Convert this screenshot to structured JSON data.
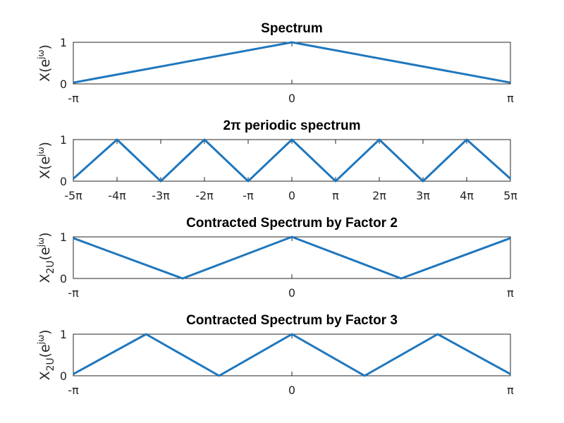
{
  "chart_data": [
    {
      "type": "line",
      "title": "Spectrum",
      "ylabel": {
        "base": "X(e",
        "sup": "jω",
        "tail": ")"
      },
      "xlim": [
        -1,
        1
      ],
      "ylim": [
        0,
        1
      ],
      "xticks": [
        -1,
        0,
        1
      ],
      "xticklabels": [
        "-π",
        "0",
        "π"
      ],
      "yticks": [
        0,
        1
      ],
      "yticklabels": [
        "0",
        "1"
      ],
      "color": "#1f77bd",
      "x": [
        -1,
        0,
        1
      ],
      "y": [
        0.03,
        1,
        0.03
      ]
    },
    {
      "type": "line",
      "title": "2π periodic spectrum",
      "ylabel": {
        "base": "X(e",
        "sup": "jω",
        "tail": ")"
      },
      "xlim": [
        -5,
        5
      ],
      "ylim": [
        0,
        1
      ],
      "xticks": [
        -5,
        -4,
        -3,
        -2,
        -1,
        0,
        1,
        2,
        3,
        4,
        5
      ],
      "xticklabels": [
        "-5π",
        "-4π",
        "-3π",
        "-2π",
        "-π",
        "0",
        "π",
        "2π",
        "3π",
        "4π",
        "5π"
      ],
      "yticks": [
        0,
        1
      ],
      "yticklabels": [
        "0",
        "1"
      ],
      "color": "#1f77bd",
      "x": [
        -5,
        -4,
        -3,
        -2,
        -1,
        0,
        1,
        2,
        3,
        4,
        5
      ],
      "y": [
        0.06,
        1,
        0,
        1,
        0,
        1,
        0,
        1,
        0,
        1,
        0.06
      ]
    },
    {
      "type": "line",
      "title": "Contracted Spectrum by Factor 2",
      "ylabel": {
        "base": "X",
        "sub": "2U",
        "mid": "(e",
        "sup": "jω",
        "tail": ")"
      },
      "xlim": [
        -1,
        1
      ],
      "ylim": [
        0,
        1
      ],
      "xticks": [
        -1,
        0,
        1
      ],
      "xticklabels": [
        "-π",
        "0",
        "π"
      ],
      "yticks": [
        0,
        1
      ],
      "yticklabels": [
        "0",
        "1"
      ],
      "color": "#1f77bd",
      "x": [
        -1,
        -0.5,
        0,
        0.5,
        1
      ],
      "y": [
        0.97,
        0,
        1,
        0,
        0.97
      ]
    },
    {
      "type": "line",
      "title": "Contracted Spectrum by Factor 3",
      "ylabel": {
        "base": "X",
        "sub": "2U",
        "mid": "(e",
        "sup": "jω",
        "tail": ")"
      },
      "xlim": [
        -1,
        1
      ],
      "ylim": [
        0,
        1
      ],
      "xticks": [
        -1,
        0,
        1
      ],
      "xticklabels": [
        "-π",
        "0",
        "π"
      ],
      "yticks": [
        0,
        1
      ],
      "yticklabels": [
        "0",
        "1"
      ],
      "color": "#1f77bd",
      "x": [
        -1,
        -0.667,
        -0.333,
        0,
        0.333,
        0.667,
        1
      ],
      "y": [
        0.04,
        1,
        0,
        1,
        0,
        1,
        0.04
      ]
    }
  ]
}
